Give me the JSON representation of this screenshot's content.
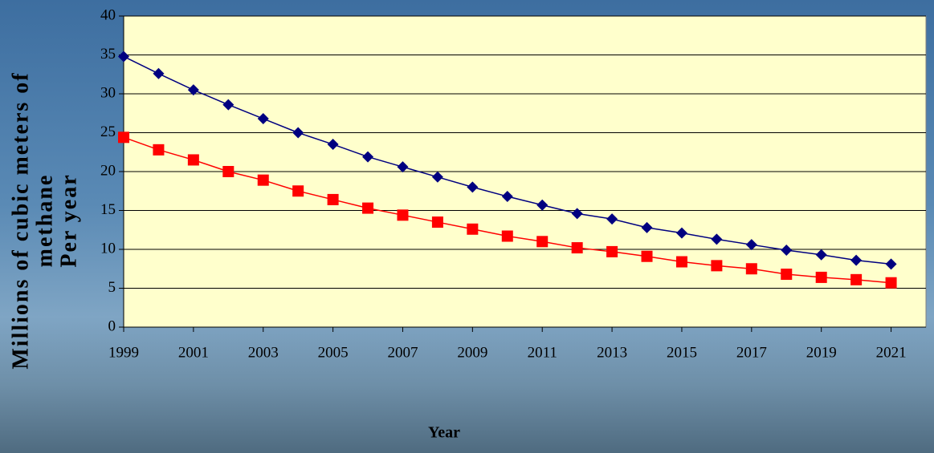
{
  "chart_data": {
    "type": "line",
    "xlabel": "Year",
    "ylabel": [
      "Millions of cubic meters of",
      "methane",
      "Per year"
    ],
    "x": [
      1999,
      2000,
      2001,
      2002,
      2003,
      2004,
      2005,
      2006,
      2007,
      2008,
      2009,
      2010,
      2011,
      2012,
      2013,
      2014,
      2015,
      2016,
      2017,
      2018,
      2019,
      2020,
      2021
    ],
    "series": [
      {
        "color": "#000080",
        "marker": "diamond",
        "values": [
          34.8,
          32.6,
          30.5,
          28.6,
          26.8,
          25.0,
          23.5,
          21.9,
          20.6,
          19.3,
          18.0,
          16.8,
          15.7,
          14.6,
          13.9,
          12.8,
          12.1,
          11.3,
          10.6,
          9.9,
          9.3,
          8.6,
          8.1
        ]
      },
      {
        "color": "#ff0000",
        "marker": "square",
        "values": [
          24.4,
          22.8,
          21.5,
          20.0,
          18.9,
          17.5,
          16.4,
          15.3,
          14.4,
          13.5,
          12.6,
          11.7,
          11.0,
          10.2,
          9.7,
          9.1,
          8.4,
          7.9,
          7.5,
          6.8,
          6.4,
          6.1,
          5.7
        ]
      }
    ],
    "xlim": [
      1999,
      2022
    ],
    "xticks": [
      1999,
      2001,
      2003,
      2005,
      2007,
      2009,
      2011,
      2013,
      2015,
      2017,
      2019,
      2021
    ],
    "ylim": [
      0,
      40
    ],
    "yticks": [
      0,
      5,
      10,
      15,
      20,
      25,
      30,
      35,
      40
    ],
    "grid": true,
    "plot_background": "#ffffcc"
  }
}
